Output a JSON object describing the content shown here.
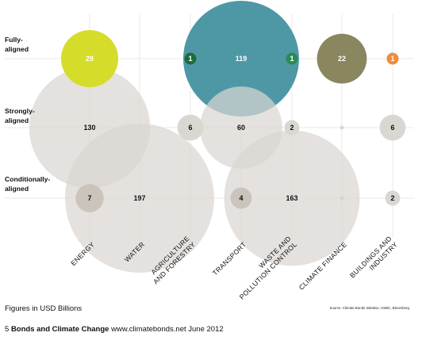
{
  "chart_data": {
    "type": "scatter",
    "categories": [
      "ENERGY",
      "WATER",
      "AGRICULTURE AND FORESTRY",
      "TRANSPORT",
      "WASTE AND POLLUTION CONTROL",
      "CLIMATE FINANCE",
      "BUILDINGS AND INDUSTRY"
    ],
    "category_label_lines": [
      [
        "ENERGY"
      ],
      [
        "WATER"
      ],
      [
        "AGRICULTURE",
        "AND FORESTRY"
      ],
      [
        "TRANSPORT"
      ],
      [
        "WASTE AND",
        "POLLUTION CONTROL"
      ],
      [
        "CLIMATE FINANCE"
      ],
      [
        "BUILDINGS AND",
        "INDUSTRY"
      ]
    ],
    "rows": [
      "Fully-\naligned",
      "Strongly-\naligned",
      "Conditionally-\naligned"
    ],
    "value_unit": "USD Billions",
    "points": [
      {
        "category": "ENERGY",
        "row": "Fully-aligned",
        "value": 29,
        "label": "29",
        "color": "#d6dc2a",
        "label_color": "#ffffff"
      },
      {
        "category": "ENERGY",
        "row": "Strongly-aligned",
        "value": 130,
        "label": "130",
        "color": "#dad6d1",
        "label_color": "#111111"
      },
      {
        "category": "ENERGY",
        "row": "Conditionally-aligned",
        "value": 7,
        "label": "7",
        "color": "#cbc4bc",
        "label_color": "#111111"
      },
      {
        "category": "WATER",
        "row": "Conditionally-aligned",
        "value": 197,
        "label": "197",
        "color": "#dad6d1",
        "label_color": "#111111"
      },
      {
        "category": "AGRICULTURE AND FORESTRY",
        "row": "Fully-aligned",
        "value": 1,
        "label": "1",
        "color": "#1f6b3a",
        "label_color": "#ffffff"
      },
      {
        "category": "AGRICULTURE AND FORESTRY",
        "row": "Strongly-aligned",
        "value": 6,
        "label": "6",
        "color": "#dad6d1",
        "label_color": "#111111"
      },
      {
        "category": "TRANSPORT",
        "row": "Fully-aligned",
        "value": 119,
        "label": "119",
        "color": "#3f8f9e",
        "label_color": "#ffffff"
      },
      {
        "category": "TRANSPORT",
        "row": "Strongly-aligned",
        "value": 60,
        "label": "60",
        "color": "#dad6d1",
        "label_color": "#111111"
      },
      {
        "category": "TRANSPORT",
        "row": "Conditionally-aligned",
        "value": 4,
        "label": "4",
        "color": "#cbc4bc",
        "label_color": "#111111"
      },
      {
        "category": "WASTE AND POLLUTION CONTROL",
        "row": "Fully-aligned",
        "value": 1,
        "label": "1",
        "color": "#2a8a55",
        "label_color": "#ffffff"
      },
      {
        "category": "WASTE AND POLLUTION CONTROL",
        "row": "Strongly-aligned",
        "value": 2,
        "label": "2",
        "color": "#dad6d1",
        "label_color": "#111111"
      },
      {
        "category": "WASTE AND POLLUTION CONTROL",
        "row": "Conditionally-aligned",
        "value": 163,
        "label": "163",
        "color": "#dad6d1",
        "label_color": "#111111"
      },
      {
        "category": "CLIMATE FINANCE",
        "row": "Fully-aligned",
        "value": 22,
        "label": "22",
        "color": "#8a8660",
        "label_color": "#ffffff"
      },
      {
        "category": "CLIMATE FINANCE",
        "row": "Strongly-aligned",
        "value": null,
        "label": "",
        "color": "#d7d3ce",
        "label_color": "#111111"
      },
      {
        "category": "CLIMATE FINANCE",
        "row": "Conditionally-aligned",
        "value": null,
        "label": "",
        "color": "#d7d3ce",
        "label_color": "#111111"
      },
      {
        "category": "BUILDINGS AND INDUSTRY",
        "row": "Fully-aligned",
        "value": 1,
        "label": "1",
        "color": "#f08b3c",
        "label_color": "#ffffff"
      },
      {
        "category": "BUILDINGS AND INDUSTRY",
        "row": "Strongly-aligned",
        "value": 6,
        "label": "6",
        "color": "#dad6d1",
        "label_color": "#111111"
      },
      {
        "category": "BUILDINGS AND INDUSTRY",
        "row": "Conditionally-aligned",
        "value": 2,
        "label": "2",
        "color": "#dad6d1",
        "label_color": "#111111"
      }
    ],
    "grid": true,
    "grid_color": "#e6e3de"
  },
  "footnote": "Figures in USD Billions",
  "source": "Source: Climate Bonds Initiative, HSBC, Bloomberg",
  "footer": {
    "page": "5",
    "title": "Bonds and Climate Change",
    "url": "www.climatebonds.net",
    "date": "June 2012"
  }
}
